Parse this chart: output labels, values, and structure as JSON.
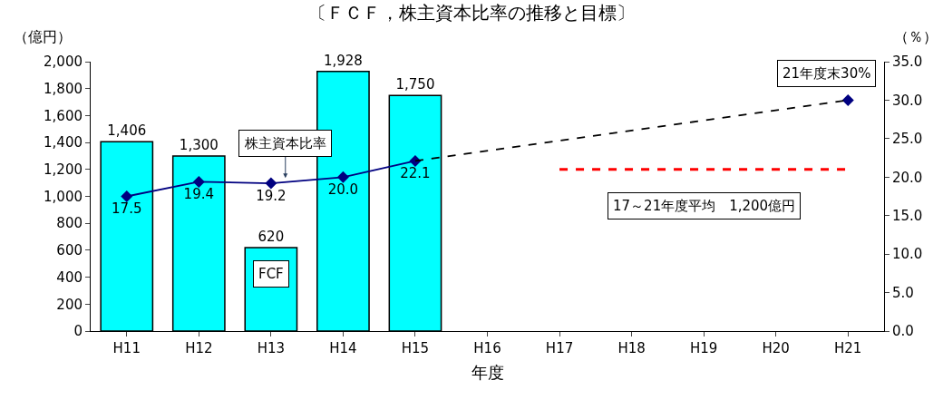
{
  "chart_data": {
    "type": "bar",
    "title": "〔ＦＣＦ，株主資本比率の推移と目標〕",
    "xlabel": "年度",
    "ylabel": "（億円）",
    "y2label": "（％）",
    "categories": [
      "H11",
      "H12",
      "H13",
      "H14",
      "H15",
      "H16",
      "H17",
      "H18",
      "H19",
      "H20",
      "H21"
    ],
    "series": [
      {
        "name": "FCF",
        "color": "#00ffff",
        "values": [
          1406,
          1300,
          620,
          1928,
          1750,
          null,
          null,
          null,
          null,
          null,
          null
        ],
        "value_labels": [
          "1,406",
          "1,300",
          "620",
          "1,928",
          "1,750",
          null,
          null,
          null,
          null,
          null,
          null
        ]
      },
      {
        "type": "line",
        "name": "株主資本比率",
        "axis": "y2",
        "color": "#000080",
        "marker": "diamond",
        "values": [
          17.5,
          19.4,
          19.2,
          20.0,
          22.1,
          null,
          null,
          null,
          null,
          null,
          30.0
        ],
        "value_labels": [
          "17.5",
          "19.4",
          "19.2",
          "20.0",
          "22.1",
          null,
          null,
          null,
          null,
          null,
          null
        ]
      },
      {
        "type": "line",
        "axis": "y2",
        "color": "#000000",
        "line_style": "dashed",
        "marker": "none",
        "x": [
          "H15",
          "H21"
        ],
        "values": [
          22.1,
          30.0
        ]
      },
      {
        "type": "line",
        "color": "#ff0000",
        "line_style": "dashed",
        "marker": "none",
        "x": [
          "H17",
          "H21"
        ],
        "values": [
          1200,
          1200
        ]
      }
    ],
    "ylim": [
      0,
      2000
    ],
    "yticks": [
      0,
      200,
      400,
      600,
      800,
      {
        "value": 1000,
        "label": "1,000"
      },
      {
        "value": 1200,
        "label": "1,200"
      },
      {
        "value": 1400,
        "label": "1,400"
      },
      {
        "value": 1600,
        "label": "1,600"
      },
      {
        "value": 1800,
        "label": "1,800"
      },
      {
        "value": 2000,
        "label": "2,000"
      }
    ],
    "y2lim": [
      0,
      35
    ],
    "y2ticks": [
      {
        "value": 0,
        "label": "0.0"
      },
      {
        "value": 5,
        "label": "5.0"
      },
      {
        "value": 10,
        "label": "10.0"
      },
      {
        "value": 15,
        "label": "15.0"
      },
      {
        "value": 20,
        "label": "20.0"
      },
      {
        "value": 25,
        "label": "25.0"
      },
      {
        "value": 30,
        "label": "30.0"
      },
      {
        "value": 35,
        "label": "35.0"
      }
    ],
    "annotations": [
      "21年度末30%",
      "17～21年度平均　1,200億円"
    ],
    "grid": false,
    "legend": false
  }
}
